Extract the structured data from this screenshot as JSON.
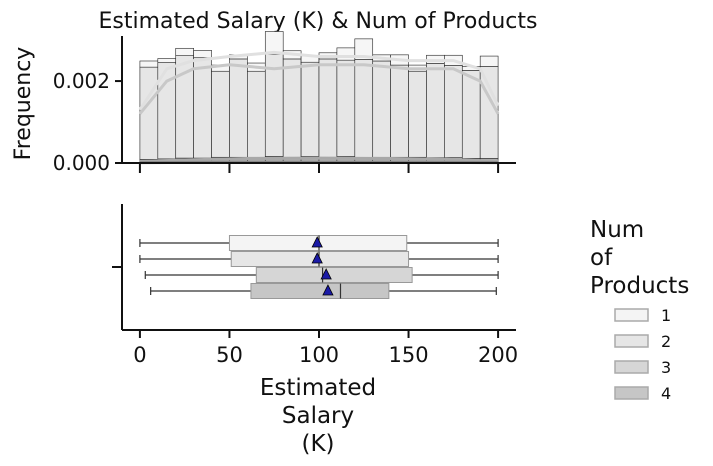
{
  "chart_data": [
    {
      "type": "histogram",
      "title": "Estimated Salary (K) & Num of Products",
      "ylabel": "Frequency",
      "ylim": [
        0,
        0.0031
      ],
      "yticks": [
        0.0,
        0.002
      ],
      "ytick_labels": [
        "0.000",
        "0.002"
      ],
      "xlim": [
        -10,
        210
      ],
      "bin_edges": [
        0,
        10,
        20,
        30,
        40,
        50,
        60,
        70,
        80,
        90,
        100,
        110,
        120,
        130,
        140,
        150,
        160,
        170,
        180,
        190,
        200
      ],
      "stacked_series": [
        {
          "name": "4",
          "values": [
            3e-05,
            3e-05,
            4e-05,
            3e-05,
            4e-05,
            4e-05,
            3e-05,
            4e-05,
            3e-05,
            4e-05,
            3e-05,
            4e-05,
            3e-05,
            4e-05,
            3e-05,
            4e-05,
            3e-05,
            4e-05,
            3e-05,
            4e-05
          ]
        },
        {
          "name": "3",
          "values": [
            6e-05,
            7e-05,
            8e-05,
            9e-05,
            0.0001,
            0.0001,
            0.00011,
            0.00012,
            0.00011,
            0.00012,
            0.00011,
            0.00012,
            0.0001,
            0.0001,
            0.00011,
            0.0001,
            0.0001,
            9e-05,
            8e-05,
            7e-05
          ]
        },
        {
          "name": "2",
          "values": [
            0.00225,
            0.00235,
            0.0025,
            0.00245,
            0.0021,
            0.0024,
            0.0021,
            0.0025,
            0.0024,
            0.0023,
            0.0024,
            0.00235,
            0.0024,
            0.00235,
            0.00225,
            0.0021,
            0.0023,
            0.00225,
            0.00215,
            0.00225
          ]
        },
        {
          "name": "1",
          "values": [
            0.00015,
            0.0001,
            0.00018,
            0.00018,
            0.00015,
            0.0001,
            0.0002,
            0.00055,
            0.0002,
            0.00015,
            0.00015,
            0.0003,
            0.0005,
            0.00015,
            0.00025,
            0.00015,
            0.0002,
            0.00025,
            0.0001,
            0.00025
          ]
        }
      ],
      "kde_series": [
        {
          "name": "1",
          "color": "#e0e0e0",
          "points": [
            [
              0,
              0.0013
            ],
            [
              15,
              0.0023
            ],
            [
              30,
              0.0025
            ],
            [
              50,
              0.0026
            ],
            [
              75,
              0.0027
            ],
            [
              100,
              0.0026
            ],
            [
              125,
              0.0026
            ],
            [
              150,
              0.0025
            ],
            [
              175,
              0.0025
            ],
            [
              190,
              0.0023
            ],
            [
              200,
              0.0014
            ]
          ]
        },
        {
          "name": "2",
          "color": "#c8c8c8",
          "points": [
            [
              0,
              0.0012
            ],
            [
              15,
              0.002
            ],
            [
              30,
              0.0023
            ],
            [
              50,
              0.0024
            ],
            [
              75,
              0.0023
            ],
            [
              100,
              0.0024
            ],
            [
              125,
              0.0024
            ],
            [
              150,
              0.0023
            ],
            [
              175,
              0.0023
            ],
            [
              190,
              0.002
            ],
            [
              200,
              0.0012
            ]
          ]
        },
        {
          "name": "3",
          "color": "#a8a8a8",
          "points": [
            [
              0,
              4e-05
            ],
            [
              30,
              8e-05
            ],
            [
              60,
              0.00011
            ],
            [
              100,
              0.00012
            ],
            [
              140,
              0.00011
            ],
            [
              170,
              9e-05
            ],
            [
              200,
              4e-05
            ]
          ]
        },
        {
          "name": "4",
          "color": "#888888",
          "points": [
            [
              0,
              1e-05
            ],
            [
              50,
              2e-05
            ],
            [
              100,
              2e-05
            ],
            [
              150,
              2e-05
            ],
            [
              200,
              1e-05
            ]
          ]
        }
      ]
    },
    {
      "type": "boxplot",
      "xlabel": "Estimated Salary (K)",
      "xlabel_lines": [
        "Estimated",
        "Salary",
        "(K)"
      ],
      "xticks": [
        0,
        50,
        100,
        150,
        200
      ],
      "xtick_labels": [
        "0",
        "50",
        "100",
        "150",
        "200"
      ],
      "xlim": [
        -10,
        210
      ],
      "boxes": [
        {
          "name": "1",
          "min": 0,
          "q1": 50,
          "median": 100,
          "q3": 149,
          "max": 200,
          "mean": 99,
          "fill": "#f4f4f4"
        },
        {
          "name": "2",
          "min": 0,
          "q1": 51,
          "median": 100,
          "q3": 150,
          "max": 200,
          "mean": 99,
          "fill": "#e6e6e6"
        },
        {
          "name": "3",
          "min": 3,
          "q1": 65,
          "median": 102,
          "q3": 152,
          "max": 200,
          "mean": 104,
          "fill": "#d6d6d6"
        },
        {
          "name": "4",
          "min": 6,
          "q1": 62,
          "median": 112,
          "q3": 139,
          "max": 199,
          "mean": 105,
          "fill": "#c6c6c6"
        }
      ],
      "mean_marker_color": "#1a1aa6"
    }
  ],
  "legend": {
    "title_lines": [
      "Num",
      "of",
      "Products"
    ],
    "entries": [
      {
        "label": "1",
        "fill": "#f4f4f4"
      },
      {
        "label": "2",
        "fill": "#e6e6e6"
      },
      {
        "label": "3",
        "fill": "#d6d6d6"
      },
      {
        "label": "4",
        "fill": "#c6c6c6"
      }
    ]
  }
}
